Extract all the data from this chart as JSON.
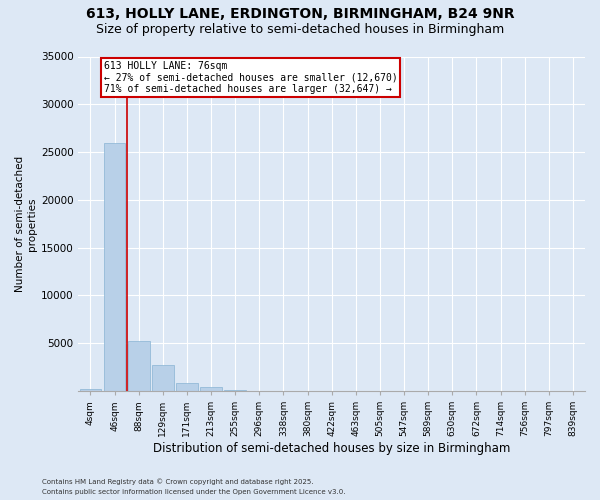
{
  "title1": "613, HOLLY LANE, ERDINGTON, BIRMINGHAM, B24 9NR",
  "title2": "Size of property relative to semi-detached houses in Birmingham",
  "xlabel": "Distribution of semi-detached houses by size in Birmingham",
  "ylabel": "Number of semi-detached\nproperties",
  "footnote1": "Contains HM Land Registry data © Crown copyright and database right 2025.",
  "footnote2": "Contains public sector information licensed under the Open Government Licence v3.0.",
  "annotation_line1": "613 HOLLY LANE: 76sqm",
  "annotation_line2": "← 27% of semi-detached houses are smaller (12,670)",
  "annotation_line3": "71% of semi-detached houses are larger (32,647) →",
  "bin_labels": [
    "4sqm",
    "46sqm",
    "88sqm",
    "129sqm",
    "171sqm",
    "213sqm",
    "255sqm",
    "296sqm",
    "338sqm",
    "380sqm",
    "422sqm",
    "463sqm",
    "505sqm",
    "547sqm",
    "589sqm",
    "630sqm",
    "672sqm",
    "714sqm",
    "756sqm",
    "797sqm",
    "839sqm"
  ],
  "bar_values": [
    200,
    26000,
    5200,
    2700,
    800,
    400,
    100,
    0,
    0,
    0,
    0,
    0,
    0,
    0,
    0,
    0,
    0,
    0,
    0,
    0,
    0
  ],
  "bar_color": "#b8d0e8",
  "bar_edge_color": "#88b4d4",
  "ylim": [
    0,
    35000
  ],
  "yticks": [
    0,
    5000,
    10000,
    15000,
    20000,
    25000,
    30000,
    35000
  ],
  "bg_color": "#dde8f5",
  "plot_bg_color": "#dde8f5",
  "grid_color": "#ffffff",
  "annotation_box_color": "#cc0000",
  "red_line_color": "#cc0000",
  "title_fontsize": 10,
  "subtitle_fontsize": 9
}
